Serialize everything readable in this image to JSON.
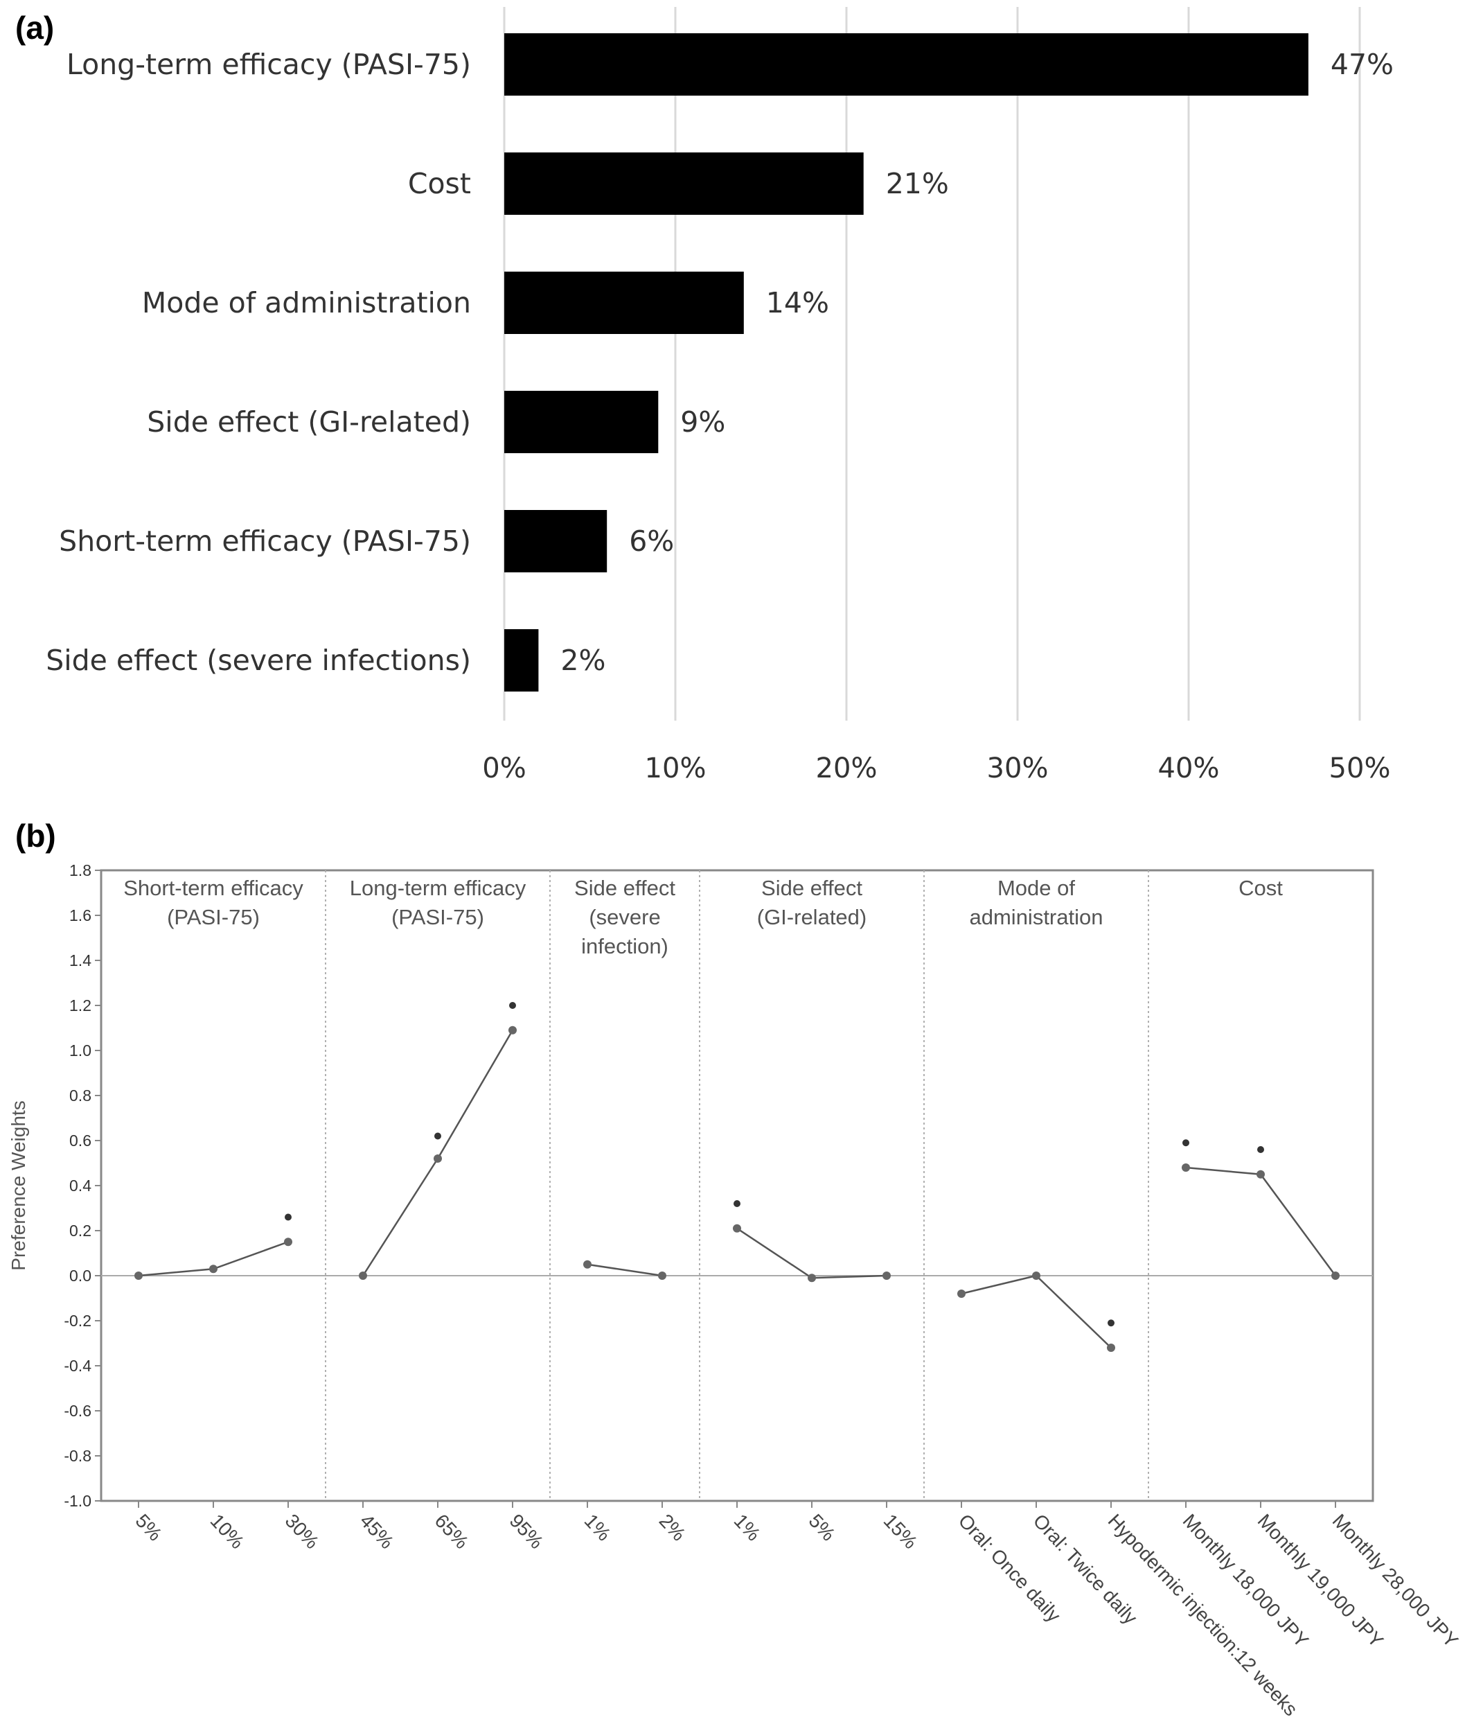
{
  "chart_data": [
    {
      "panel": "(a)",
      "type": "bar",
      "orientation": "horizontal",
      "categories": [
        "Long-term efficacy (PASI-75)",
        "Cost",
        "Mode of administration",
        "Side effect (GI-related)",
        "Short-term efficacy (PASI-75)",
        "Side effect (severe infections)"
      ],
      "values": [
        47,
        21,
        14,
        9,
        6,
        2
      ],
      "value_labels": [
        "47%",
        "21%",
        "14%",
        "9%",
        "6%",
        "2%"
      ],
      "xlim": [
        0,
        50
      ],
      "xticks": [
        "0%",
        "10%",
        "20%",
        "30%",
        "40%",
        "50%"
      ],
      "grid": "vertical",
      "colors": {
        "bar": "#000000",
        "grid": "#d9d9d9"
      }
    },
    {
      "panel": "(b)",
      "type": "line",
      "ylabel": "Preference Weights",
      "ylim": [
        -1.0,
        1.8
      ],
      "yticks": [
        "1.8",
        "1.6",
        "1.4",
        "1.2",
        "1.0",
        "0.8",
        "0.6",
        "0.4",
        "0.2",
        "0.0",
        "-0.2",
        "-0.4",
        "-0.6",
        "-0.8",
        "-1.0"
      ],
      "attributes": [
        {
          "name": "Short-term efficacy (PASI-75)",
          "title_lines": [
            "Short-term efficacy",
            "(PASI-75)"
          ],
          "levels": [
            "5%",
            "10%",
            "30%"
          ],
          "values": [
            0.0,
            0.03,
            0.15
          ],
          "markers": [
            null,
            null,
            0.26
          ]
        },
        {
          "name": "Long-term efficacy (PASI-75)",
          "title_lines": [
            "Long-term efficacy",
            "(PASI-75)"
          ],
          "levels": [
            "45%",
            "65%",
            "95%"
          ],
          "values": [
            0.0,
            0.52,
            1.09
          ],
          "markers": [
            null,
            0.62,
            1.2
          ]
        },
        {
          "name": "Side effect (severe infection)",
          "title_lines": [
            "Side effect",
            "(severe",
            "infection)"
          ],
          "levels": [
            "1%",
            "2%"
          ],
          "values": [
            0.05,
            0.0
          ],
          "markers": [
            null,
            null
          ]
        },
        {
          "name": "Side effect (GI-related)",
          "title_lines": [
            "Side effect",
            "(GI-related)"
          ],
          "levels": [
            "1%",
            "5%",
            "15%"
          ],
          "values": [
            0.21,
            -0.01,
            0.0
          ],
          "markers": [
            0.32,
            null,
            null
          ]
        },
        {
          "name": "Mode of administration",
          "title_lines": [
            "Mode of",
            "administration"
          ],
          "levels": [
            "Oral: Once daily",
            "Oral: Twice daily",
            "Hypodermic injection:12 weeks"
          ],
          "values": [
            -0.08,
            0.0,
            -0.32
          ],
          "markers": [
            null,
            null,
            -0.21
          ]
        },
        {
          "name": "Cost",
          "title_lines": [
            "Cost"
          ],
          "levels": [
            "Monthly 18,000 JPY",
            "Monthly 19,000 JPY",
            "Monthly 28,000 JPY"
          ],
          "values": [
            0.48,
            0.45,
            0.0
          ],
          "markers": [
            0.59,
            0.56,
            null
          ]
        }
      ],
      "grid": "none",
      "colors": {
        "line": "#555555",
        "point": "#666666",
        "marker": "#333333",
        "frame": "#888888",
        "zero_line": "#aaaaaa"
      }
    }
  ]
}
